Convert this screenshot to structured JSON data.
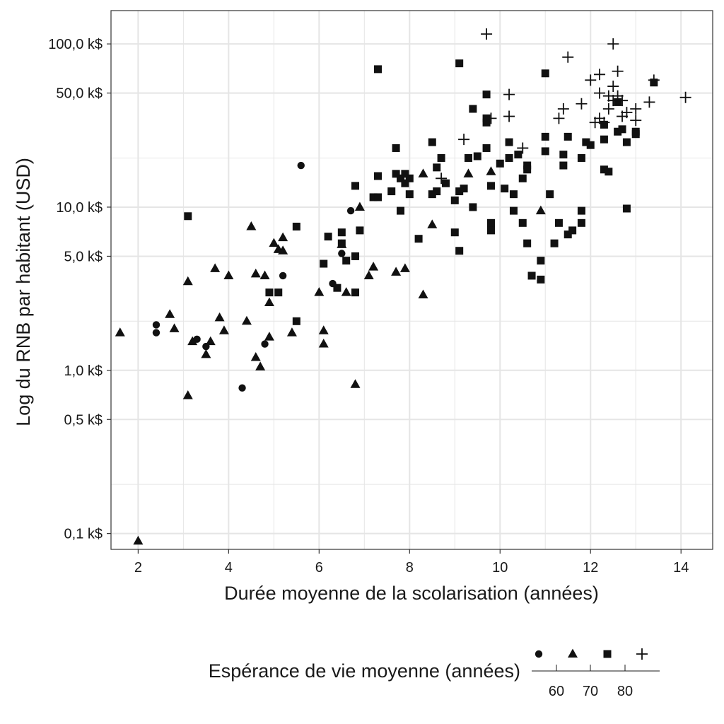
{
  "chart_data": {
    "type": "scatter",
    "xlabel": "Durée moyenne de la scolarisation (années)",
    "ylabel": "Log du RNB par habitant (USD)",
    "x_scale": "linear",
    "y_scale": "log10",
    "xlim": [
      1.4,
      14.7
    ],
    "ylim": [
      0.08,
      160
    ],
    "x_ticks": [
      2,
      4,
      6,
      8,
      10,
      12,
      14
    ],
    "y_ticks": [
      {
        "value": 0.1,
        "label": "0,1 k$"
      },
      {
        "value": 0.5,
        "label": "0,5 k$"
      },
      {
        "value": 1,
        "label": "1,0 k$"
      },
      {
        "value": 5,
        "label": "5,0 k$"
      },
      {
        "value": 10,
        "label": "10,0 k$"
      },
      {
        "value": 50,
        "label": "50,0 k$"
      },
      {
        "value": 100,
        "label": "100,0 k$"
      }
    ],
    "y_minor_grid": [
      0.2,
      2,
      20
    ],
    "grid": true,
    "colors": {
      "marker": "#111111",
      "grid": "#e5e5e5",
      "panel_border": "#333333"
    },
    "legend": {
      "title": "Espérance de vie moyenne (années)",
      "position": "bottom",
      "scale_labels": [
        "60",
        "70",
        "80"
      ],
      "shapes": [
        "circle",
        "triangle",
        "square",
        "plus"
      ]
    },
    "series": [
      {
        "shape": "circle",
        "points": [
          [
            2.4,
            1.9
          ],
          [
            2.4,
            1.7
          ],
          [
            3.3,
            1.55
          ],
          [
            3.5,
            1.4
          ],
          [
            4.3,
            0.78
          ],
          [
            4.8,
            1.45
          ],
          [
            5.2,
            3.8
          ],
          [
            5.6,
            18
          ],
          [
            6.3,
            3.4
          ],
          [
            6.5,
            5.2
          ],
          [
            6.7,
            9.5
          ]
        ]
      },
      {
        "shape": "triangle",
        "points": [
          [
            1.6,
            1.7
          ],
          [
            2.0,
            0.09
          ],
          [
            2.7,
            2.2
          ],
          [
            2.8,
            1.8
          ],
          [
            3.1,
            3.5
          ],
          [
            3.1,
            0.7
          ],
          [
            3.2,
            1.5
          ],
          [
            3.5,
            1.25
          ],
          [
            3.6,
            1.5
          ],
          [
            3.7,
            4.2
          ],
          [
            3.8,
            2.1
          ],
          [
            3.9,
            1.75
          ],
          [
            4.0,
            3.8
          ],
          [
            4.4,
            2.0
          ],
          [
            4.5,
            7.6
          ],
          [
            4.6,
            3.9
          ],
          [
            4.6,
            1.2
          ],
          [
            4.7,
            1.05
          ],
          [
            4.8,
            3.8
          ],
          [
            4.9,
            2.6
          ],
          [
            4.9,
            1.6
          ],
          [
            5.0,
            6.0
          ],
          [
            5.1,
            5.5
          ],
          [
            5.2,
            6.5
          ],
          [
            5.2,
            5.4
          ],
          [
            5.4,
            1.7
          ],
          [
            6.0,
            3.0
          ],
          [
            6.1,
            1.75
          ],
          [
            6.1,
            1.45
          ],
          [
            6.5,
            5.9
          ],
          [
            6.6,
            3.0
          ],
          [
            6.8,
            0.82
          ],
          [
            6.9,
            10
          ],
          [
            7.1,
            3.8
          ],
          [
            7.2,
            4.3
          ],
          [
            7.7,
            4.0
          ],
          [
            7.9,
            4.2
          ],
          [
            8.3,
            2.9
          ],
          [
            8.3,
            16
          ],
          [
            8.5,
            7.8
          ],
          [
            9.3,
            16
          ],
          [
            9.8,
            16.5
          ],
          [
            10.9,
            9.5
          ]
        ]
      },
      {
        "shape": "square",
        "points": [
          [
            3.1,
            8.8
          ],
          [
            4.9,
            3.0
          ],
          [
            5.1,
            3.0
          ],
          [
            5.5,
            2.0
          ],
          [
            5.5,
            7.6
          ],
          [
            6.1,
            4.5
          ],
          [
            6.2,
            6.6
          ],
          [
            6.4,
            3.2
          ],
          [
            6.5,
            7.0
          ],
          [
            6.5,
            6.0
          ],
          [
            6.6,
            4.7
          ],
          [
            6.8,
            13.5
          ],
          [
            6.8,
            5.0
          ],
          [
            6.8,
            3.0
          ],
          [
            6.9,
            7.2
          ],
          [
            7.2,
            11.5
          ],
          [
            7.3,
            15.5
          ],
          [
            7.3,
            11.5
          ],
          [
            7.3,
            70
          ],
          [
            7.6,
            12.5
          ],
          [
            7.7,
            23
          ],
          [
            7.7,
            16
          ],
          [
            7.8,
            9.5
          ],
          [
            7.8,
            15
          ],
          [
            7.9,
            16
          ],
          [
            7.9,
            14
          ],
          [
            8.0,
            12
          ],
          [
            8.0,
            15
          ],
          [
            8.2,
            6.4
          ],
          [
            8.5,
            25
          ],
          [
            8.5,
            12
          ],
          [
            8.6,
            12.5
          ],
          [
            8.6,
            17.5
          ],
          [
            8.7,
            20
          ],
          [
            8.8,
            14
          ],
          [
            9.0,
            11
          ],
          [
            9.0,
            7.0
          ],
          [
            9.1,
            5.4
          ],
          [
            9.1,
            12.5
          ],
          [
            9.1,
            76
          ],
          [
            9.2,
            13
          ],
          [
            9.3,
            20
          ],
          [
            9.4,
            10
          ],
          [
            9.4,
            40
          ],
          [
            9.5,
            20.5
          ],
          [
            9.7,
            33
          ],
          [
            9.7,
            49
          ],
          [
            9.7,
            23
          ],
          [
            9.7,
            35
          ],
          [
            9.8,
            13.5
          ],
          [
            9.8,
            8.0
          ],
          [
            9.8,
            7.2
          ],
          [
            10.0,
            18.5
          ],
          [
            10.1,
            13
          ],
          [
            10.2,
            25
          ],
          [
            10.2,
            20
          ],
          [
            10.3,
            9.5
          ],
          [
            10.3,
            12
          ],
          [
            10.4,
            21
          ],
          [
            10.5,
            8.0
          ],
          [
            10.5,
            15
          ],
          [
            10.6,
            18
          ],
          [
            10.6,
            17
          ],
          [
            10.6,
            6.0
          ],
          [
            10.7,
            3.8
          ],
          [
            10.9,
            4.7
          ],
          [
            10.9,
            3.6
          ],
          [
            11.0,
            27
          ],
          [
            11.0,
            22
          ],
          [
            11.0,
            66
          ],
          [
            11.1,
            12
          ],
          [
            11.2,
            6.0
          ],
          [
            11.3,
            8.0
          ],
          [
            11.4,
            18
          ],
          [
            11.4,
            21
          ],
          [
            11.5,
            27
          ],
          [
            11.5,
            6.8
          ],
          [
            11.6,
            7.2
          ],
          [
            11.8,
            8.0
          ],
          [
            11.8,
            9.5
          ],
          [
            11.8,
            20
          ],
          [
            11.9,
            25
          ],
          [
            12.0,
            24
          ],
          [
            12.3,
            26
          ],
          [
            12.3,
            32
          ],
          [
            12.3,
            17
          ],
          [
            12.4,
            16.5
          ],
          [
            12.6,
            29
          ],
          [
            12.6,
            44
          ],
          [
            12.7,
            30
          ],
          [
            12.8,
            25
          ],
          [
            12.8,
            9.8
          ],
          [
            13.0,
            29
          ],
          [
            13.0,
            28
          ],
          [
            13.4,
            58
          ]
        ]
      },
      {
        "shape": "plus",
        "points": [
          [
            8.7,
            15
          ],
          [
            9.2,
            26
          ],
          [
            9.7,
            115
          ],
          [
            9.8,
            35
          ],
          [
            10.2,
            49
          ],
          [
            10.2,
            36
          ],
          [
            10.5,
            23
          ],
          [
            11.3,
            35
          ],
          [
            11.4,
            40
          ],
          [
            11.5,
            83
          ],
          [
            11.8,
            43
          ],
          [
            12.0,
            60
          ],
          [
            12.1,
            33
          ],
          [
            12.2,
            35
          ],
          [
            12.2,
            50
          ],
          [
            12.2,
            65
          ],
          [
            12.3,
            33
          ],
          [
            12.4,
            40
          ],
          [
            12.4,
            48
          ],
          [
            12.5,
            55
          ],
          [
            12.5,
            100
          ],
          [
            12.5,
            45
          ],
          [
            12.6,
            68
          ],
          [
            12.6,
            48
          ],
          [
            12.7,
            45
          ],
          [
            12.7,
            36
          ],
          [
            12.8,
            38
          ],
          [
            13.0,
            40
          ],
          [
            13.0,
            34
          ],
          [
            13.3,
            44
          ],
          [
            13.4,
            60
          ],
          [
            14.1,
            47
          ]
        ]
      }
    ]
  }
}
